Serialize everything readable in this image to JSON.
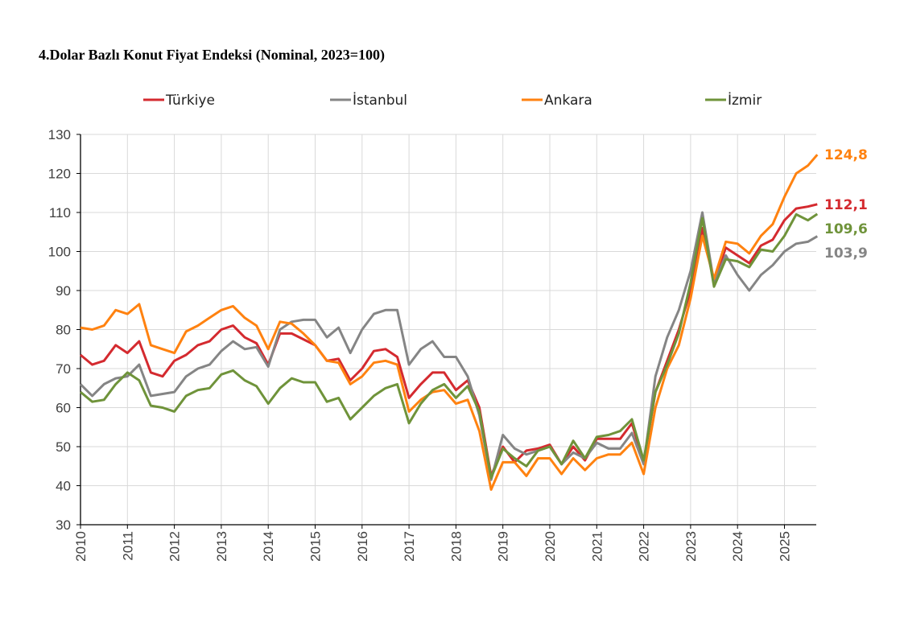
{
  "chart_data": {
    "type": "line",
    "title": "4.Dolar Bazlı Konut Fiyat Endeksi (Nominal, 2023=100)",
    "xlabel": "",
    "ylabel": "",
    "xlim": [
      2010,
      2025.75
    ],
    "ylim": [
      30,
      130
    ],
    "yticks": [
      "30",
      "40",
      "50",
      "60",
      "70",
      "80",
      "90",
      "100",
      "110",
      "120",
      "130"
    ],
    "xticks": [
      "2010",
      "2011",
      "2012",
      "2013",
      "2014",
      "2015",
      "2016",
      "2017",
      "2018",
      "2019",
      "2020",
      "2021",
      "2022",
      "2023",
      "2024",
      "2025"
    ],
    "grid": true,
    "legend_position": "top",
    "x_step_years": 0.25,
    "series": [
      {
        "name": "Türkiye",
        "color": "#d42a2f",
        "end_label": "112,1",
        "values": [
          73.5,
          71,
          72,
          76,
          74,
          77,
          69,
          68,
          72,
          73.5,
          76,
          77,
          80,
          81,
          78,
          76.5,
          71,
          79,
          79,
          77.5,
          76,
          72,
          72.5,
          67,
          70,
          74.5,
          75,
          73,
          62.5,
          66,
          69,
          69,
          64.5,
          67,
          60,
          42.5,
          50,
          46,
          49,
          49.5,
          50.5,
          45.5,
          50,
          46.5,
          52,
          52,
          52,
          56,
          46,
          64,
          72,
          80,
          90,
          106,
          92,
          101,
          99,
          97,
          101.5,
          103,
          108,
          111,
          111.5,
          112.1
        ]
      },
      {
        "name": "İstanbul",
        "color": "#858585",
        "end_label": "103,9",
        "values": [
          66,
          63,
          66,
          67.5,
          68,
          71,
          63,
          63.5,
          64,
          68,
          70,
          71,
          74.5,
          77,
          75,
          75.5,
          70.5,
          80,
          82,
          82.5,
          82.5,
          78,
          80.5,
          74,
          80,
          84,
          85,
          85,
          71,
          75,
          77,
          73,
          73,
          68,
          58,
          41.5,
          53,
          49.5,
          48,
          49,
          50,
          45.5,
          48.5,
          47,
          51,
          49.5,
          49.5,
          53.5,
          45.5,
          68,
          78,
          85,
          95,
          110,
          92,
          99,
          94,
          90,
          94,
          96.5,
          100,
          102,
          102.5,
          103.9
        ]
      },
      {
        "name": "Ankara",
        "color": "#ff8210",
        "end_label": "124,8",
        "values": [
          80.5,
          80,
          81,
          85,
          84,
          86.5,
          76,
          75,
          74,
          79.5,
          81,
          83,
          85,
          86,
          83,
          81,
          75,
          82,
          81.5,
          79,
          76,
          72,
          71.5,
          66,
          68,
          71.5,
          72,
          71,
          59,
          62,
          64,
          64.5,
          61,
          62,
          54,
          39,
          46,
          46,
          42.5,
          47,
          47,
          43,
          47,
          44,
          47,
          48,
          48,
          51,
          43,
          60,
          70,
          76,
          88,
          104,
          93,
          102.5,
          102,
          99.5,
          104,
          107,
          114,
          120,
          122,
          124.8
        ]
      },
      {
        "name": "İzmir",
        "color": "#6f933a",
        "end_label": "109,6",
        "values": [
          64,
          61.5,
          62,
          66,
          69,
          67,
          60.5,
          60,
          59,
          63,
          64.5,
          65,
          68.5,
          69.5,
          67,
          65.5,
          61,
          65,
          67.5,
          66.5,
          66.5,
          61.5,
          62.5,
          57,
          60,
          63,
          65,
          66,
          56,
          61,
          64.5,
          66,
          62.5,
          65.5,
          59,
          42,
          49.5,
          47,
          45,
          49,
          50,
          45.5,
          51.5,
          47,
          52.5,
          53,
          54,
          57,
          46.5,
          64,
          71,
          79,
          92,
          108.5,
          91,
          98,
          97.5,
          96,
          100.5,
          100,
          104,
          109.5,
          108,
          109.6
        ]
      }
    ]
  }
}
